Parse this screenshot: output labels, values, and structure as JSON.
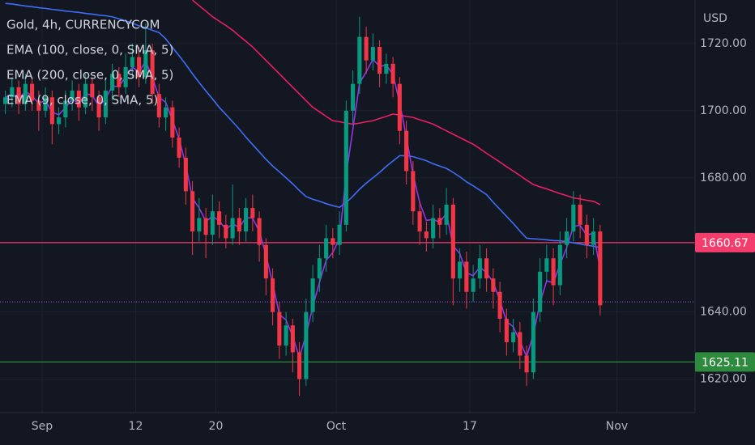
{
  "chart_data": {
    "type": "candlestick",
    "title": "Gold, 4h, CURRENCYCOM",
    "currency_label": "USD",
    "up_color": "#089981",
    "down_color": "#f23645",
    "x": [
      -2.75,
      -2.25,
      -1.75,
      -1.25,
      -0.75,
      -0.25,
      0.25,
      0.75,
      1.25,
      1.75,
      2.25,
      2.75,
      3.25,
      3.75,
      4.25,
      4.75,
      5.25,
      5.75,
      6.25,
      6.75,
      7.25,
      7.75,
      8.25,
      8.75,
      9.25,
      9.75,
      10.25,
      10.75,
      11.25,
      11.75,
      12.25,
      12.75,
      13.25,
      13.75,
      14.25,
      14.75,
      15.25,
      15.75,
      16.25,
      16.75,
      17.25,
      17.75,
      18.25,
      18.75,
      19.25,
      19.75,
      20.25,
      20.75,
      21.25,
      21.75,
      22.25,
      22.75,
      23.25,
      23.75,
      24.25,
      24.75,
      25.25,
      25.75,
      26.25,
      26.75,
      27.25,
      27.75,
      28.25,
      28.75,
      29.25,
      29.75,
      30.25,
      30.75,
      31.25,
      31.75,
      32.25,
      32.75,
      33.25,
      33.75,
      34.25,
      34.75,
      35.25,
      35.75,
      36.25,
      36.75,
      37.25,
      37.75,
      38.25,
      38.75,
      39.25,
      39.75,
      40.25,
      40.75,
      41.25,
      41.75
    ],
    "open": [
      1702,
      1704,
      1707,
      1702,
      1708,
      1703,
      1700,
      1704,
      1696,
      1698,
      1703,
      1706,
      1701,
      1708,
      1704,
      1698,
      1706,
      1711,
      1707,
      1713,
      1716,
      1710,
      1718,
      1705,
      1698,
      1701,
      1692,
      1686,
      1676,
      1664,
      1668,
      1663,
      1670,
      1666,
      1662,
      1668,
      1664,
      1671,
      1668,
      1660,
      1650,
      1640,
      1630,
      1636,
      1628,
      1620,
      1640,
      1650,
      1656,
      1662,
      1660,
      1666,
      1700,
      1708,
      1722,
      1715,
      1719,
      1711,
      1714,
      1708,
      1694,
      1682,
      1670,
      1664,
      1662,
      1668,
      1666,
      1672,
      1650,
      1655,
      1646,
      1650,
      1656,
      1650,
      1646,
      1638,
      1631,
      1634,
      1627,
      1622,
      1640,
      1652,
      1656,
      1648,
      1660,
      1664,
      1672,
      1666,
      1660,
      1664
    ],
    "high": [
      1706,
      1710,
      1709,
      1711,
      1710,
      1706,
      1707,
      1706,
      1701,
      1706,
      1709,
      1708,
      1711,
      1710,
      1706,
      1709,
      1714,
      1713,
      1717,
      1720,
      1719,
      1726,
      1720,
      1708,
      1704,
      1703,
      1695,
      1689,
      1679,
      1674,
      1671,
      1675,
      1673,
      1669,
      1678,
      1671,
      1674,
      1675,
      1670,
      1662,
      1653,
      1643,
      1640,
      1638,
      1631,
      1644,
      1654,
      1660,
      1666,
      1665,
      1670,
      1703,
      1712,
      1728,
      1725,
      1723,
      1721,
      1717,
      1716,
      1710,
      1697,
      1685,
      1673,
      1667,
      1672,
      1671,
      1677,
      1674,
      1659,
      1658,
      1654,
      1660,
      1659,
      1653,
      1649,
      1641,
      1638,
      1637,
      1630,
      1644,
      1656,
      1660,
      1659,
      1664,
      1668,
      1676,
      1675,
      1669,
      1668,
      1666
    ],
    "low": [
      1699,
      1701,
      1699,
      1700,
      1700,
      1694,
      1698,
      1690,
      1693,
      1695,
      1700,
      1697,
      1699,
      1700,
      1694,
      1696,
      1703,
      1704,
      1705,
      1710,
      1707,
      1708,
      1702,
      1695,
      1694,
      1689,
      1683,
      1672,
      1657,
      1661,
      1656,
      1660,
      1662,
      1659,
      1660,
      1660,
      1661,
      1664,
      1655,
      1645,
      1636,
      1626,
      1627,
      1622,
      1615,
      1618,
      1637,
      1646,
      1652,
      1656,
      1657,
      1664,
      1696,
      1705,
      1711,
      1712,
      1707,
      1708,
      1704,
      1690,
      1678,
      1666,
      1660,
      1658,
      1659,
      1662,
      1663,
      1642,
      1646,
      1641,
      1643,
      1647,
      1646,
      1641,
      1634,
      1627,
      1628,
      1623,
      1618,
      1620,
      1637,
      1649,
      1642,
      1645,
      1656,
      1661,
      1662,
      1656,
      1657,
      1639
    ],
    "close": [
      1704,
      1707,
      1702,
      1708,
      1703,
      1700,
      1704,
      1696,
      1698,
      1703,
      1706,
      1701,
      1708,
      1704,
      1698,
      1706,
      1711,
      1707,
      1713,
      1716,
      1710,
      1718,
      1705,
      1698,
      1701,
      1692,
      1686,
      1676,
      1664,
      1668,
      1663,
      1670,
      1666,
      1662,
      1668,
      1664,
      1671,
      1668,
      1660,
      1650,
      1640,
      1630,
      1636,
      1628,
      1620,
      1640,
      1650,
      1656,
      1662,
      1660,
      1666,
      1700,
      1708,
      1722,
      1715,
      1719,
      1711,
      1714,
      1708,
      1694,
      1682,
      1670,
      1664,
      1662,
      1668,
      1666,
      1672,
      1650,
      1655,
      1646,
      1650,
      1656,
      1650,
      1646,
      1638,
      1631,
      1634,
      1627,
      1622,
      1640,
      1652,
      1656,
      1648,
      1660,
      1664,
      1672,
      1666,
      1660,
      1664,
      1642
    ],
    "series": [
      {
        "name": "EMA (100, close, 0, SMA, 5)",
        "color": "#3d6ef5",
        "values": [
          1732,
          1731.8,
          1731.5,
          1731.2,
          1731,
          1730.7,
          1730.5,
          1730.2,
          1730,
          1729.7,
          1729.5,
          1729.3,
          1729,
          1728.8,
          1728.5,
          1728.3,
          1728,
          1727.4,
          1726.8,
          1726.1,
          1725.3,
          1724.7,
          1724,
          1723.3,
          1721.4,
          1718.9,
          1716.4,
          1713.8,
          1711,
          1708.4,
          1705.9,
          1703.5,
          1701,
          1698.9,
          1696.7,
          1694.5,
          1692.1,
          1689.9,
          1687.7,
          1685.5,
          1683.5,
          1681.8,
          1680,
          1678.2,
          1676.2,
          1674.4,
          1673.6,
          1673,
          1672.3,
          1671.7,
          1671.2,
          1672.6,
          1674.5,
          1676.6,
          1678.4,
          1680,
          1681.6,
          1683.4,
          1685,
          1686.6,
          1686.6,
          1686.3,
          1685.7,
          1685.1,
          1684.2,
          1683.5,
          1682.8,
          1681.6,
          1680.3,
          1678.8,
          1677.6,
          1676.3,
          1675,
          1672.7,
          1670.6,
          1668.5,
          1666.4,
          1664.1,
          1662,
          1661.8,
          1661.7,
          1661.5,
          1661.3,
          1661.2,
          1661,
          1660.6,
          1660.3,
          1659.9,
          1659.6,
          1659.2
        ]
      },
      {
        "name": "EMA (200, close, 0, SMA, 5)",
        "color": "#e91e63",
        "values": [
          null,
          null,
          null,
          null,
          null,
          null,
          null,
          null,
          null,
          null,
          null,
          null,
          null,
          null,
          null,
          null,
          null,
          null,
          null,
          null,
          null,
          null,
          null,
          null,
          null,
          null,
          null,
          null,
          1733,
          1731.3,
          1729.7,
          1728,
          1726.7,
          1725.4,
          1724,
          1722.3,
          1720.7,
          1719,
          1717,
          1715,
          1713,
          1711,
          1709,
          1707,
          1705,
          1703,
          1701,
          1699.7,
          1698.3,
          1697,
          1696.7,
          1696.3,
          1696,
          1696.3,
          1696.7,
          1697,
          1697.7,
          1698.3,
          1699,
          1698.7,
          1698.3,
          1698,
          1697.3,
          1696.7,
          1696,
          1695,
          1694,
          1693,
          1692,
          1691,
          1690,
          1688.7,
          1687.3,
          1686,
          1684.7,
          1683.3,
          1682,
          1680.7,
          1679.3,
          1678,
          1677.3,
          1676.7,
          1676,
          1675.3,
          1674.7,
          1674,
          1673.7,
          1673.3,
          1673,
          1672
        ]
      },
      {
        "name": "EMA (9, close, 0, SMA, 5)",
        "color": "#9334e6",
        "values": [
          1704,
          1705,
          1703.5,
          1705.8,
          1704.4,
          1702.2,
          1703.1,
          1699.5,
          1698.8,
          1700.9,
          1703.4,
          1702.2,
          1705.1,
          1704.6,
          1701.3,
          1703.6,
          1707.3,
          1707.2,
          1710.1,
          1713,
          1711.5,
          1714.8,
          1709.9,
          1704,
          1702.5,
          1697.2,
          1691.6,
          1683.8,
          1673.9,
          1671,
          1667,
          1668.5,
          1667.2,
          1664.6,
          1666.3,
          1665.2,
          1668.1,
          1668,
          1664,
          1657,
          1648.5,
          1639.3,
          1637.6,
          1632.8,
          1626.4,
          1633.2,
          1641.6,
          1648.8,
          1655.4,
          1657.7,
          1661.9,
          1680.9,
          1694.5,
          1708.2,
          1711.6,
          1715.3,
          1713.2,
          1713.6,
          1710.8,
          1702.4,
          1692.2,
          1681.1,
          1672.6,
          1667.3,
          1667.6,
          1666.8,
          1669.4,
          1659.7,
          1657.4,
          1651.7,
          1650.8,
          1653.4,
          1651.7,
          1648.9,
          1643.4,
          1637.2,
          1635.6,
          1631.3,
          1626.7,
          1633.3,
          1642.7,
          1649.3,
          1648.7,
          1654.3,
          1659.2,
          1665.6,
          1665.8,
          1662.9,
          1663.5,
          1652.7
        ]
      }
    ],
    "levels": [
      {
        "value": 1660.67,
        "color": "#f23d6d"
      },
      {
        "value": 1625.11,
        "color": "#2e8b3e"
      }
    ],
    "last_price_line": {
      "value": 1643,
      "color": "#9c5bd8"
    },
    "xlim": [
      -3.15,
      48.85
    ],
    "xticks": [
      {
        "value": 0,
        "label": "Sep"
      },
      {
        "value": 7,
        "label": "12"
      },
      {
        "value": 13,
        "label": "20"
      },
      {
        "value": 22,
        "label": "Oct"
      },
      {
        "value": 32,
        "label": "17"
      },
      {
        "value": 43,
        "label": "Nov"
      }
    ],
    "ylim": [
      1610,
      1733
    ],
    "yticks": [
      {
        "value": 1620,
        "label": "1620.00"
      },
      {
        "value": 1640,
        "label": "1640.00"
      },
      {
        "value": 1680,
        "label": "1680.00"
      },
      {
        "value": 1700,
        "label": "1700.00"
      },
      {
        "value": 1720,
        "label": "1720.00"
      }
    ],
    "grid": true
  }
}
